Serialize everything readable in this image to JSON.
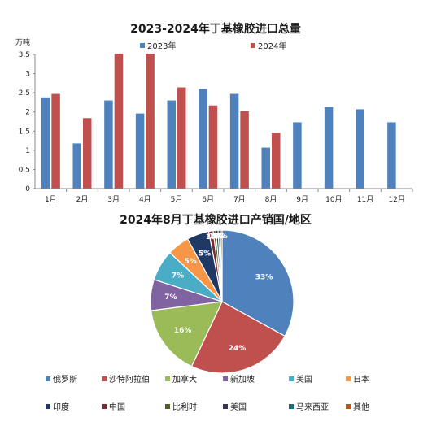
{
  "chart_data": [
    {
      "type": "bar",
      "title": "2023-2024年丁基橡胶进口总量",
      "ylabel": "万吨",
      "categories": [
        "1月",
        "2月",
        "3月",
        "4月",
        "5月",
        "6月",
        "7月",
        "8月",
        "9月",
        "10月",
        "11月",
        "12月"
      ],
      "ylim": [
        0,
        3.5
      ],
      "yticks": [
        "0",
        "0.5",
        "1",
        "1.5",
        "2",
        "2.5",
        "3",
        "3.5"
      ],
      "series": [
        {
          "name": "2023年",
          "color": "#4f81bd",
          "values": [
            2.38,
            1.18,
            2.3,
            1.96,
            2.3,
            2.6,
            2.47,
            1.07,
            1.73,
            2.13,
            2.07,
            1.73
          ]
        },
        {
          "name": "2024年",
          "color": "#c0504d",
          "values": [
            2.47,
            1.84,
            3.52,
            3.52,
            2.64,
            2.17,
            2.02,
            1.46,
            null,
            null,
            null,
            null
          ]
        }
      ],
      "legend": "top"
    },
    {
      "type": "pie",
      "title": "2024年8月丁基橡胶进口产销国/地区",
      "slices": [
        {
          "name": "俄罗斯",
          "value": 33,
          "label": "33%",
          "color": "#4f81bd"
        },
        {
          "name": "沙特阿拉伯",
          "value": 24,
          "label": "24%",
          "color": "#c0504d"
        },
        {
          "name": "加拿大",
          "value": 16,
          "label": "16%",
          "color": "#9bbb59"
        },
        {
          "name": "新加坡",
          "value": 7,
          "label": "7%",
          "color": "#8064a2"
        },
        {
          "name": "美国",
          "value": 7,
          "label": "7%",
          "color": "#4bacc6"
        },
        {
          "name": "日本",
          "value": 5,
          "label": "5%",
          "color": "#f79646"
        },
        {
          "name": "印度",
          "value": 5,
          "label": "5%",
          "color": "#1f3864"
        },
        {
          "name": "中国",
          "value": 1,
          "label": "1%",
          "color": "#7b2c2c"
        },
        {
          "name": "比利时",
          "value": 0.6,
          "label": "1%",
          "color": "#4f6228"
        },
        {
          "name": "美国",
          "value": 0.5,
          "label": "0%",
          "color": "#3f3151"
        },
        {
          "name": "马来西亚",
          "value": 0.5,
          "label": "0%",
          "color": "#1e6e7e"
        },
        {
          "name": "其他",
          "value": 0.4,
          "label": "0%",
          "color": "#b35b1e"
        }
      ],
      "legend": "bottom"
    }
  ]
}
